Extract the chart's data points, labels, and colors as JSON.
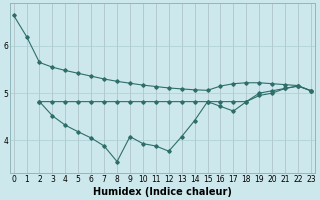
{
  "background_color": "#cde8ec",
  "line_color": "#2e6e6a",
  "grid_color": "#aacfd4",
  "xlabel": "Humidex (Indice chaleur)",
  "xlabel_fontsize": 7,
  "tick_fontsize": 5.5,
  "figsize": [
    3.2,
    2.0
  ],
  "dpi": 100,
  "line1_x": [
    0,
    1,
    2,
    3,
    4,
    5,
    6,
    7,
    8,
    9,
    10,
    11,
    12,
    13,
    14,
    15,
    16,
    17,
    18,
    19,
    20,
    21,
    22,
    23
  ],
  "line1_y": [
    6.65,
    6.2,
    5.65,
    5.55,
    5.48,
    5.42,
    5.36,
    5.3,
    5.25,
    5.21,
    5.17,
    5.14,
    5.11,
    5.09,
    5.07,
    5.06,
    5.15,
    5.2,
    5.22,
    5.22,
    5.2,
    5.18,
    5.16,
    5.05
  ],
  "line2_x": [
    2,
    3,
    4,
    5,
    6,
    7,
    8,
    9,
    10,
    11,
    12,
    13,
    14,
    15,
    16,
    17,
    18,
    19,
    20,
    21,
    22,
    23
  ],
  "line2_y": [
    4.82,
    4.82,
    4.82,
    4.82,
    4.82,
    4.82,
    4.82,
    4.82,
    4.82,
    4.82,
    4.82,
    4.82,
    4.82,
    4.82,
    4.82,
    4.82,
    4.82,
    5.0,
    5.05,
    5.1,
    5.15,
    5.05
  ],
  "line3_x": [
    2,
    3,
    4,
    5,
    6,
    7,
    8,
    9,
    10,
    11,
    12,
    13,
    14,
    15,
    16,
    17,
    18,
    19,
    20,
    21,
    22,
    23
  ],
  "line3_y": [
    4.82,
    4.52,
    4.32,
    4.18,
    4.05,
    3.88,
    3.55,
    4.08,
    3.93,
    3.88,
    3.77,
    4.08,
    4.42,
    4.82,
    4.72,
    4.62,
    4.82,
    4.95,
    5.0,
    5.1,
    5.15,
    5.05
  ],
  "yticks": [
    4,
    5,
    6
  ],
  "xticks": [
    0,
    1,
    2,
    3,
    4,
    5,
    6,
    7,
    8,
    9,
    10,
    11,
    12,
    13,
    14,
    15,
    16,
    17,
    18,
    19,
    20,
    21,
    22,
    23
  ],
  "xlim": [
    -0.3,
    23.3
  ],
  "ylim": [
    3.3,
    6.9
  ]
}
